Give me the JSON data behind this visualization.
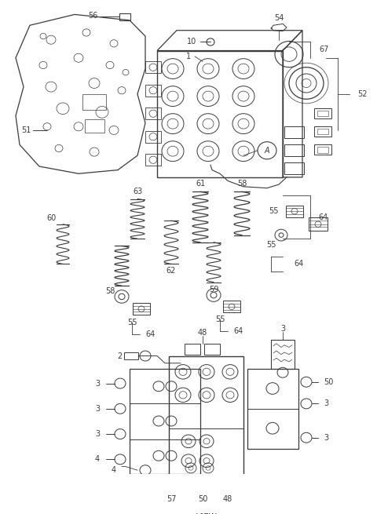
{
  "bg_color": "#ffffff",
  "line_color": "#3a3a3a",
  "fig_width": 4.8,
  "fig_height": 6.55,
  "dpi": 100
}
